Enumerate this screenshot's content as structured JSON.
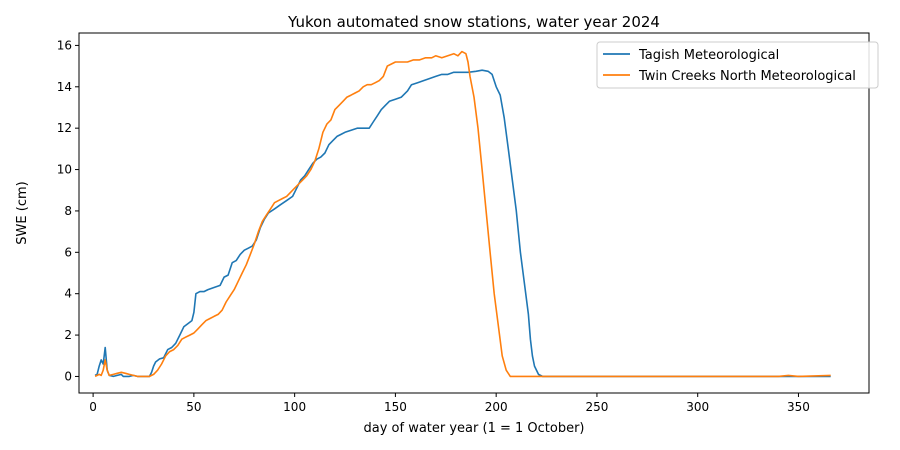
{
  "chart_data": {
    "type": "line",
    "title": "Yukon automated snow stations, water year 2024",
    "xlabel": "day of water year (1 = 1 October)",
    "ylabel": "SWE (cm)",
    "xlim": [
      -7,
      385
    ],
    "ylim": [
      -0.8,
      16.6
    ],
    "xticks": [
      0,
      50,
      100,
      150,
      200,
      250,
      300,
      350
    ],
    "yticks": [
      0,
      2,
      4,
      6,
      8,
      10,
      12,
      14,
      16
    ],
    "grid": false,
    "legend_position": "upper right",
    "series": [
      {
        "name": "Tagish Meteorological",
        "color": "#1f77b4",
        "points": [
          [
            1,
            0.05
          ],
          [
            2,
            0.1
          ],
          [
            3,
            0.5
          ],
          [
            4,
            0.8
          ],
          [
            5,
            0.6
          ],
          [
            6,
            1.4
          ],
          [
            7,
            0.3
          ],
          [
            8,
            0.05
          ],
          [
            10,
            0.0
          ],
          [
            12,
            0.05
          ],
          [
            14,
            0.1
          ],
          [
            15,
            0.0
          ],
          [
            18,
            0.0
          ],
          [
            20,
            0.05
          ],
          [
            22,
            0.0
          ],
          [
            28,
            0.0
          ],
          [
            29,
            0.2
          ],
          [
            30,
            0.5
          ],
          [
            31,
            0.7
          ],
          [
            33,
            0.85
          ],
          [
            35,
            0.9
          ],
          [
            37,
            1.3
          ],
          [
            39,
            1.4
          ],
          [
            41,
            1.6
          ],
          [
            43,
            2.0
          ],
          [
            45,
            2.4
          ],
          [
            47,
            2.55
          ],
          [
            49,
            2.7
          ],
          [
            50,
            3.1
          ],
          [
            51,
            4.0
          ],
          [
            53,
            4.1
          ],
          [
            55,
            4.1
          ],
          [
            57,
            4.2
          ],
          [
            60,
            4.3
          ],
          [
            63,
            4.4
          ],
          [
            65,
            4.8
          ],
          [
            67,
            4.9
          ],
          [
            69,
            5.5
          ],
          [
            71,
            5.6
          ],
          [
            73,
            5.9
          ],
          [
            75,
            6.1
          ],
          [
            77,
            6.2
          ],
          [
            79,
            6.3
          ],
          [
            81,
            6.6
          ],
          [
            83,
            7.2
          ],
          [
            85,
            7.6
          ],
          [
            87,
            7.9
          ],
          [
            90,
            8.1
          ],
          [
            93,
            8.3
          ],
          [
            96,
            8.5
          ],
          [
            99,
            8.7
          ],
          [
            101,
            9.1
          ],
          [
            103,
            9.5
          ],
          [
            105,
            9.7
          ],
          [
            107,
            10.0
          ],
          [
            109,
            10.3
          ],
          [
            111,
            10.5
          ],
          [
            113,
            10.6
          ],
          [
            115,
            10.8
          ],
          [
            117,
            11.2
          ],
          [
            119,
            11.4
          ],
          [
            121,
            11.6
          ],
          [
            123,
            11.7
          ],
          [
            125,
            11.8
          ],
          [
            128,
            11.9
          ],
          [
            131,
            12.0
          ],
          [
            134,
            12.0
          ],
          [
            137,
            12.0
          ],
          [
            139,
            12.3
          ],
          [
            141,
            12.6
          ],
          [
            143,
            12.9
          ],
          [
            145,
            13.1
          ],
          [
            147,
            13.3
          ],
          [
            150,
            13.4
          ],
          [
            153,
            13.5
          ],
          [
            156,
            13.8
          ],
          [
            158,
            14.1
          ],
          [
            161,
            14.2
          ],
          [
            164,
            14.3
          ],
          [
            167,
            14.4
          ],
          [
            170,
            14.5
          ],
          [
            173,
            14.6
          ],
          [
            176,
            14.6
          ],
          [
            179,
            14.7
          ],
          [
            182,
            14.7
          ],
          [
            186,
            14.7
          ],
          [
            190,
            14.75
          ],
          [
            193,
            14.8
          ],
          [
            196,
            14.75
          ],
          [
            198,
            14.6
          ],
          [
            200,
            14.0
          ],
          [
            202,
            13.6
          ],
          [
            204,
            12.5
          ],
          [
            206,
            11.0
          ],
          [
            208,
            9.5
          ],
          [
            210,
            8.0
          ],
          [
            212,
            6.0
          ],
          [
            214,
            4.5
          ],
          [
            216,
            3.0
          ],
          [
            217,
            1.8
          ],
          [
            218,
            1.0
          ],
          [
            219,
            0.5
          ],
          [
            221,
            0.1
          ],
          [
            223,
            0.0
          ],
          [
            366,
            0.0
          ]
        ]
      },
      {
        "name": "Twin Creeks North Meteorological",
        "color": "#ff7f0e",
        "points": [
          [
            1,
            0.0
          ],
          [
            2,
            0.05
          ],
          [
            3,
            0.1
          ],
          [
            4,
            0.05
          ],
          [
            5,
            0.3
          ],
          [
            6,
            0.8
          ],
          [
            7,
            0.3
          ],
          [
            8,
            0.05
          ],
          [
            10,
            0.1
          ],
          [
            12,
            0.15
          ],
          [
            14,
            0.2
          ],
          [
            16,
            0.15
          ],
          [
            18,
            0.1
          ],
          [
            20,
            0.05
          ],
          [
            22,
            0.0
          ],
          [
            28,
            0.0
          ],
          [
            30,
            0.1
          ],
          [
            32,
            0.3
          ],
          [
            34,
            0.6
          ],
          [
            36,
            1.0
          ],
          [
            38,
            1.2
          ],
          [
            40,
            1.3
          ],
          [
            42,
            1.5
          ],
          [
            44,
            1.8
          ],
          [
            46,
            1.9
          ],
          [
            48,
            2.0
          ],
          [
            50,
            2.1
          ],
          [
            52,
            2.3
          ],
          [
            54,
            2.5
          ],
          [
            56,
            2.7
          ],
          [
            58,
            2.8
          ],
          [
            60,
            2.9
          ],
          [
            62,
            3.0
          ],
          [
            64,
            3.2
          ],
          [
            66,
            3.6
          ],
          [
            68,
            3.9
          ],
          [
            70,
            4.2
          ],
          [
            72,
            4.6
          ],
          [
            74,
            5.0
          ],
          [
            76,
            5.4
          ],
          [
            78,
            5.9
          ],
          [
            80,
            6.4
          ],
          [
            82,
            7.0
          ],
          [
            84,
            7.5
          ],
          [
            86,
            7.8
          ],
          [
            88,
            8.1
          ],
          [
            90,
            8.4
          ],
          [
            92,
            8.5
          ],
          [
            94,
            8.6
          ],
          [
            96,
            8.7
          ],
          [
            98,
            8.9
          ],
          [
            100,
            9.1
          ],
          [
            102,
            9.3
          ],
          [
            104,
            9.5
          ],
          [
            106,
            9.7
          ],
          [
            108,
            10.0
          ],
          [
            110,
            10.4
          ],
          [
            112,
            11.0
          ],
          [
            114,
            11.8
          ],
          [
            116,
            12.2
          ],
          [
            118,
            12.4
          ],
          [
            120,
            12.9
          ],
          [
            122,
            13.1
          ],
          [
            124,
            13.3
          ],
          [
            126,
            13.5
          ],
          [
            128,
            13.6
          ],
          [
            130,
            13.7
          ],
          [
            132,
            13.8
          ],
          [
            134,
            14.0
          ],
          [
            136,
            14.1
          ],
          [
            138,
            14.1
          ],
          [
            140,
            14.2
          ],
          [
            142,
            14.3
          ],
          [
            144,
            14.5
          ],
          [
            146,
            15.0
          ],
          [
            148,
            15.1
          ],
          [
            150,
            15.2
          ],
          [
            153,
            15.2
          ],
          [
            156,
            15.2
          ],
          [
            159,
            15.3
          ],
          [
            162,
            15.3
          ],
          [
            165,
            15.4
          ],
          [
            168,
            15.4
          ],
          [
            170,
            15.5
          ],
          [
            173,
            15.4
          ],
          [
            176,
            15.5
          ],
          [
            179,
            15.6
          ],
          [
            181,
            15.5
          ],
          [
            183,
            15.7
          ],
          [
            185,
            15.6
          ],
          [
            186,
            15.2
          ],
          [
            187,
            14.5
          ],
          [
            189,
            13.5
          ],
          [
            191,
            12.0
          ],
          [
            193,
            10.0
          ],
          [
            195,
            8.0
          ],
          [
            197,
            6.0
          ],
          [
            199,
            4.0
          ],
          [
            201,
            2.5
          ],
          [
            203,
            1.0
          ],
          [
            205,
            0.3
          ],
          [
            207,
            0.0
          ],
          [
            340,
            0.0
          ],
          [
            345,
            0.05
          ],
          [
            350,
            0.0
          ],
          [
            366,
            0.05
          ]
        ]
      }
    ]
  }
}
